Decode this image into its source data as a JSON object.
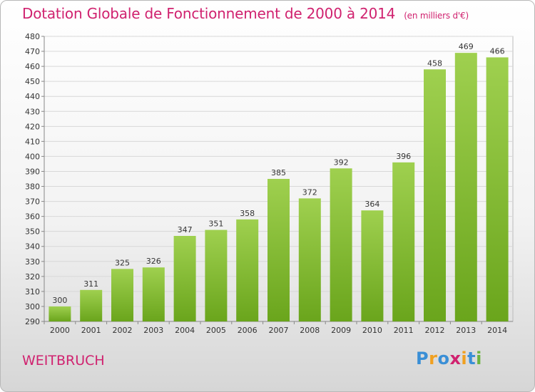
{
  "header": {
    "title": "Dotation Globale de Fonctionnement de 2000 à 2014",
    "subtitle": "(en milliers d'€)"
  },
  "footer": {
    "city": "WEITBRUCH",
    "logo": "Proxiti"
  },
  "colors": {
    "accent": "#d0226f",
    "bar_top": "#9fd04f",
    "bar_bottom": "#6aa51c"
  },
  "chart_data": {
    "type": "bar",
    "title": "Dotation Globale de Fonctionnement de 2000 à 2014",
    "subtitle": "(en milliers d'€)",
    "xlabel": "",
    "ylabel": "",
    "ylim": [
      290,
      480
    ],
    "ytick_step": 10,
    "grid": true,
    "categories": [
      "2000",
      "2001",
      "2002",
      "2003",
      "2004",
      "2005",
      "2006",
      "2007",
      "2008",
      "2009",
      "2010",
      "2011",
      "2012",
      "2013",
      "2014"
    ],
    "values": [
      300,
      311,
      325,
      326,
      347,
      351,
      358,
      385,
      372,
      392,
      364,
      396,
      458,
      469,
      466
    ]
  }
}
